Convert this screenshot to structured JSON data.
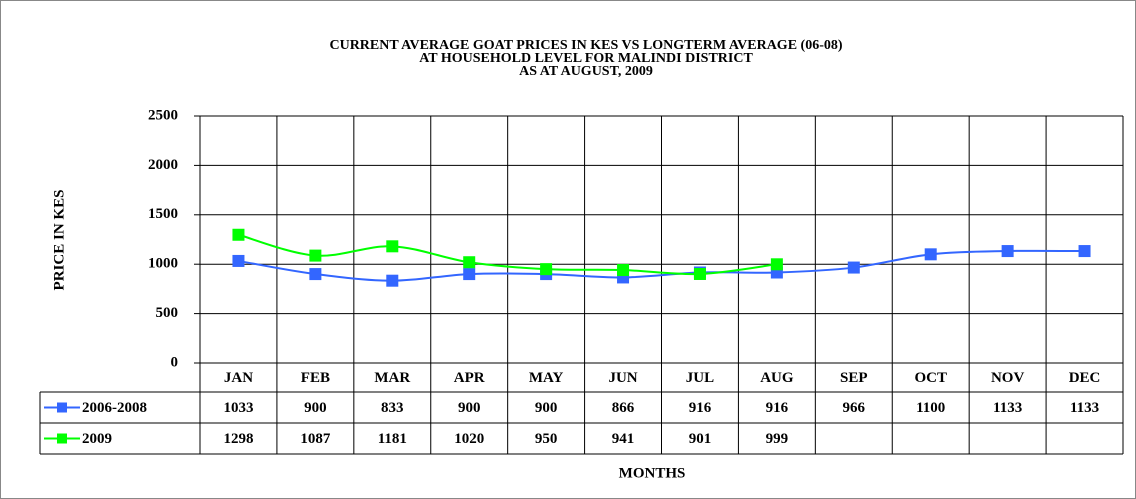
{
  "chart_data": {
    "type": "line",
    "title": [
      "CURRENT AVERAGE GOAT PRICES IN KES VS LONGTERM AVERAGE (06-08)",
      "AT HOUSEHOLD LEVEL FOR MALINDI DISTRICT",
      "AS AT AUGUST,  2009"
    ],
    "y_label": "PRICE IN KES",
    "x_label": "MONTHS",
    "categories": [
      "JAN",
      "FEB",
      "MAR",
      "APR",
      "MAY",
      "JUN",
      "JUL",
      "AUG",
      "SEP",
      "OCT",
      "NOV",
      "DEC"
    ],
    "series": [
      {
        "name": "2006-2008",
        "color": "#3366ff",
        "values": [
          1033,
          900,
          833,
          900,
          900,
          866,
          916,
          916,
          966,
          1100,
          1133,
          1133
        ]
      },
      {
        "name": "2009",
        "color": "#00ff00",
        "values": [
          1298,
          1087,
          1181,
          1020,
          950,
          941,
          901,
          999,
          null,
          null,
          null,
          null
        ]
      }
    ],
    "ylim": [
      0,
      2500
    ],
    "yticks": [
      0,
      500,
      1000,
      1500,
      2000,
      2500
    ],
    "grid": true,
    "data_table": true
  }
}
